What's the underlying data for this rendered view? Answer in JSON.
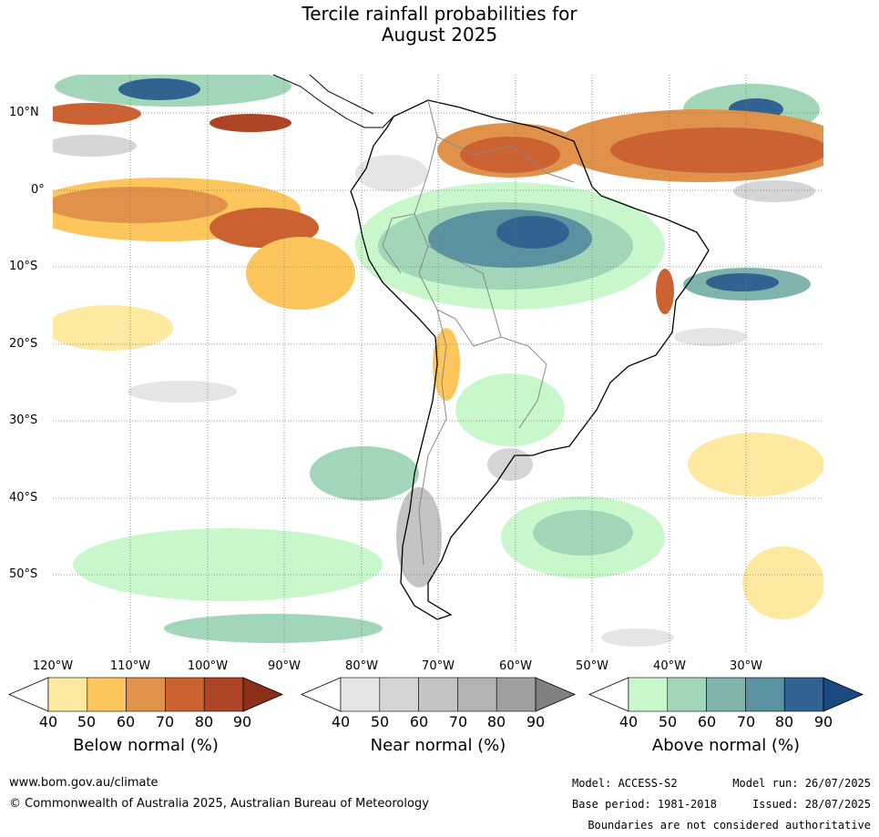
{
  "title_line1": "Tercile rainfall probabilities for",
  "title_line2": "August 2025",
  "lat_labels": [
    "10°N",
    "0°",
    "10°S",
    "20°S",
    "30°S",
    "40°S",
    "50°S"
  ],
  "lon_labels": [
    "120°W",
    "110°W",
    "100°W",
    "90°W",
    "80°W",
    "70°W",
    "60°W",
    "50°W",
    "40°W",
    "30°W"
  ],
  "colorbars": [
    {
      "title": "Below normal (%)",
      "ticks": [
        "40",
        "50",
        "60",
        "70",
        "80",
        "90"
      ],
      "colors": [
        "#fde9a0",
        "#fcc65c",
        "#e0924a",
        "#cc6232",
        "#ad4426",
        "#8b2e1a"
      ]
    },
    {
      "title": "Near normal (%)",
      "ticks": [
        "40",
        "50",
        "60",
        "70",
        "80",
        "90"
      ],
      "colors": [
        "#e5e5e5",
        "#d5d5d5",
        "#c4c4c4",
        "#b3b3b3",
        "#a0a0a0",
        "#808080"
      ]
    },
    {
      "title": "Above normal (%)",
      "ticks": [
        "40",
        "50",
        "60",
        "70",
        "80",
        "90"
      ],
      "colors": [
        "#c8f7cc",
        "#a2d6b8",
        "#7fb4ad",
        "#5a92a0",
        "#326290",
        "#1a4a80"
      ]
    }
  ],
  "footer": {
    "website": "www.bom.gov.au/climate",
    "copyright": "© Commonwealth of Australia 2025, Australian Bureau of Meteorology",
    "model": "Model: ACCESS-S2",
    "base_period": "Base period: 1981-2018",
    "model_run": "Model run: 26/07/2025",
    "issued": "Issued: 28/07/2025",
    "disclaimer": "Boundaries are not considered authoritative"
  }
}
